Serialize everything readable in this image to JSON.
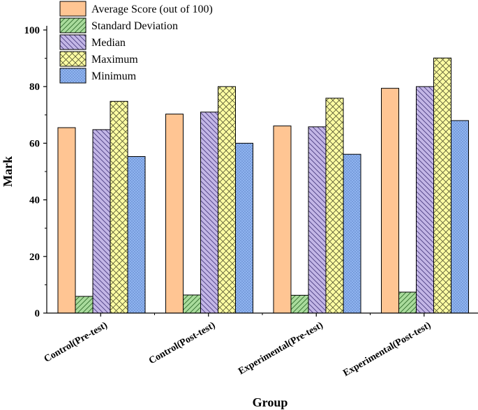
{
  "chart_data": {
    "type": "bar",
    "title": "",
    "xlabel": "Group",
    "ylabel": "Mark",
    "ylim": [
      0,
      100
    ],
    "yticks": [
      0,
      20,
      40,
      60,
      80,
      100
    ],
    "grid": false,
    "legend_position": "top-left",
    "categories": [
      "Control(Pre-test)",
      "Control(Post-test)",
      "Experimental(Pre-test)",
      "Experimental(Post-test)"
    ],
    "series": [
      {
        "name": "Average Score (out of 100)",
        "values": [
          65.5,
          70.3,
          66.1,
          79.4
        ],
        "color": "#FFC593",
        "pattern": "none"
      },
      {
        "name": "Standard Deviation",
        "values": [
          5.9,
          6.4,
          6.3,
          7.4
        ],
        "color": "#A9DB9C",
        "pattern": "diag-up"
      },
      {
        "name": "Median",
        "values": [
          64.8,
          71.0,
          65.8,
          80.0
        ],
        "color": "#C3B6E6",
        "pattern": "diag-down"
      },
      {
        "name": "Maximum",
        "values": [
          74.8,
          80.0,
          75.9,
          90.1
        ],
        "color": "#FFFFA3",
        "pattern": "crosshatch"
      },
      {
        "name": "Minimum",
        "values": [
          55.3,
          60.0,
          56.1,
          68.0
        ],
        "color": "#8FB4F0",
        "pattern": "dots"
      }
    ]
  }
}
